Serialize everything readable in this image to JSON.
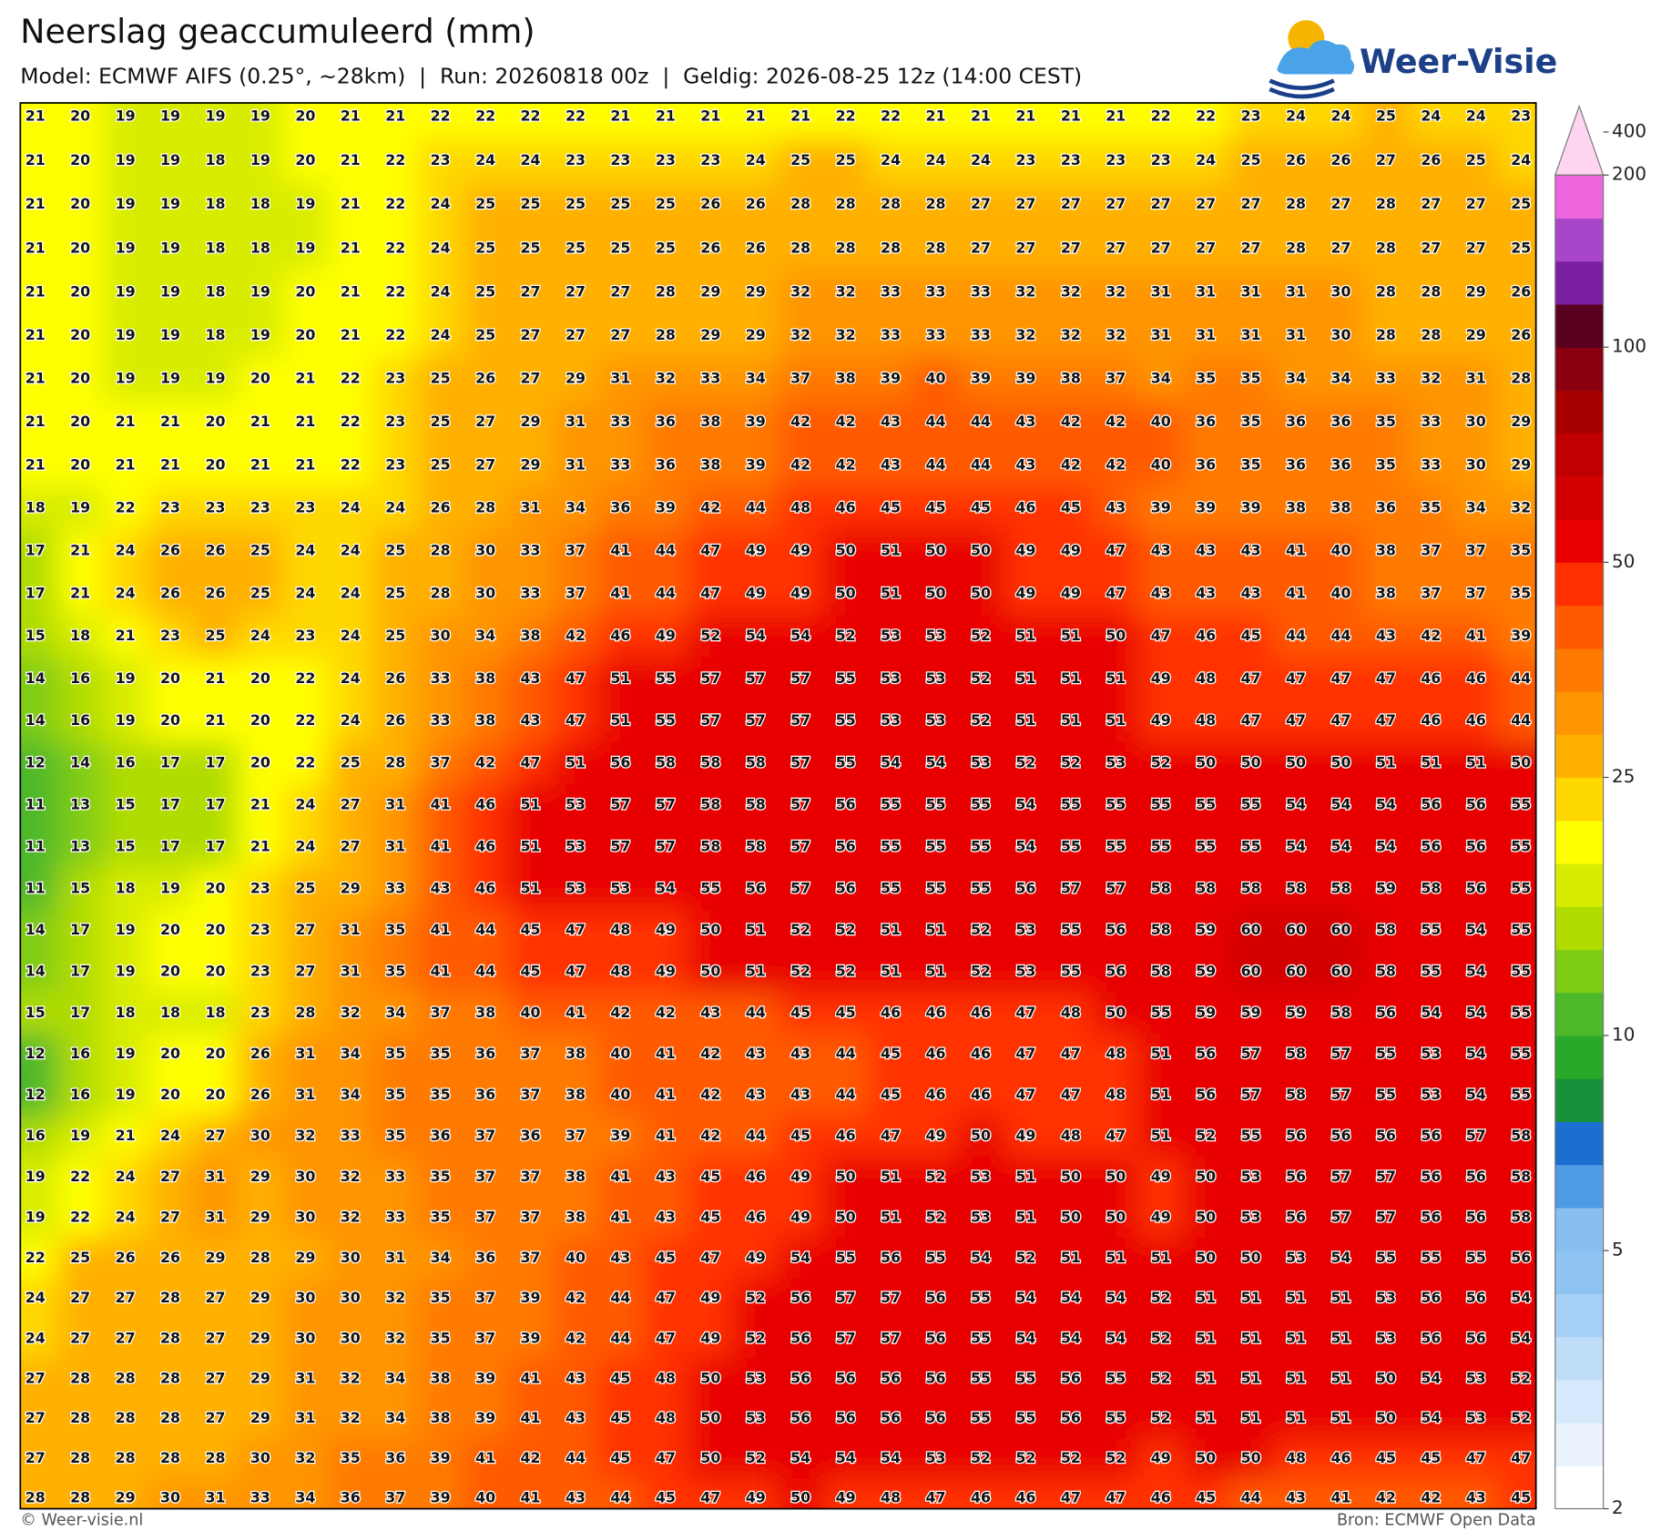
{
  "header": {
    "title": "Neerslag geaccumuleerd (mm)",
    "subtitle": "Model: ECMWF AIFS (0.25°, ~28km)  |  Run: 20260818 00z  |  Geldig: 2026-08-25 12z (14:00 CEST)"
  },
  "logo": {
    "text": "Weer-Visie"
  },
  "map": {
    "grid": [
      [
        21,
        20,
        19,
        19,
        19,
        19,
        20,
        21,
        21,
        22,
        22,
        22,
        22,
        21,
        21,
        21,
        21,
        21,
        22,
        22,
        21,
        21,
        21,
        21,
        21,
        22,
        22,
        23,
        24,
        24,
        25,
        24,
        24,
        23
      ],
      [
        21,
        20,
        19,
        19,
        18,
        19,
        20,
        21,
        22,
        23,
        24,
        24,
        23,
        23,
        23,
        23,
        24,
        25,
        25,
        24,
        24,
        24,
        23,
        23,
        23,
        23,
        24,
        25,
        26,
        26,
        27,
        26,
        25,
        24
      ],
      [
        21,
        20,
        19,
        19,
        18,
        18,
        19,
        21,
        22,
        24,
        25,
        25,
        25,
        25,
        25,
        26,
        26,
        28,
        28,
        28,
        28,
        27,
        27,
        27,
        27,
        27,
        27,
        27,
        28,
        27,
        28,
        27,
        27,
        25
      ],
      [
        21,
        20,
        19,
        19,
        18,
        18,
        19,
        21,
        22,
        24,
        25,
        25,
        25,
        25,
        25,
        26,
        26,
        28,
        28,
        28,
        28,
        27,
        27,
        27,
        27,
        27,
        27,
        27,
        28,
        27,
        28,
        27,
        27,
        25
      ],
      [
        21,
        20,
        19,
        19,
        18,
        19,
        20,
        21,
        22,
        24,
        25,
        27,
        27,
        27,
        28,
        29,
        29,
        32,
        32,
        33,
        33,
        33,
        32,
        32,
        32,
        31,
        31,
        31,
        31,
        30,
        28,
        28,
        29,
        26
      ],
      [
        21,
        20,
        19,
        19,
        18,
        19,
        20,
        21,
        22,
        24,
        25,
        27,
        27,
        27,
        28,
        29,
        29,
        32,
        32,
        33,
        33,
        33,
        32,
        32,
        32,
        31,
        31,
        31,
        31,
        30,
        28,
        28,
        29,
        26
      ],
      [
        21,
        20,
        19,
        19,
        19,
        20,
        21,
        22,
        23,
        25,
        26,
        27,
        29,
        31,
        32,
        33,
        34,
        37,
        38,
        39,
        40,
        39,
        39,
        38,
        37,
        34,
        35,
        35,
        34,
        34,
        33,
        32,
        31,
        28
      ],
      [
        21,
        20,
        21,
        21,
        20,
        21,
        21,
        22,
        23,
        25,
        27,
        29,
        31,
        33,
        36,
        38,
        39,
        42,
        42,
        43,
        44,
        44,
        43,
        42,
        42,
        40,
        36,
        35,
        36,
        36,
        35,
        33,
        30,
        29
      ],
      [
        21,
        20,
        21,
        21,
        20,
        21,
        21,
        22,
        23,
        25,
        27,
        29,
        31,
        33,
        36,
        38,
        39,
        42,
        42,
        43,
        44,
        44,
        43,
        42,
        42,
        40,
        36,
        35,
        36,
        36,
        35,
        33,
        30,
        29
      ],
      [
        18,
        19,
        22,
        23,
        23,
        23,
        23,
        24,
        24,
        26,
        28,
        31,
        34,
        36,
        39,
        42,
        44,
        48,
        46,
        45,
        45,
        45,
        46,
        45,
        43,
        39,
        39,
        39,
        38,
        38,
        36,
        35,
        34,
        32
      ],
      [
        17,
        21,
        24,
        26,
        26,
        25,
        24,
        24,
        25,
        28,
        30,
        33,
        37,
        41,
        44,
        47,
        49,
        49,
        50,
        51,
        50,
        50,
        49,
        49,
        47,
        43,
        43,
        43,
        41,
        40,
        38,
        37,
        37,
        35
      ],
      [
        17,
        21,
        24,
        26,
        26,
        25,
        24,
        24,
        25,
        28,
        30,
        33,
        37,
        41,
        44,
        47,
        49,
        49,
        50,
        51,
        50,
        50,
        49,
        49,
        47,
        43,
        43,
        43,
        41,
        40,
        38,
        37,
        37,
        35
      ],
      [
        15,
        18,
        21,
        23,
        25,
        24,
        23,
        24,
        25,
        30,
        34,
        38,
        42,
        46,
        49,
        52,
        54,
        54,
        52,
        53,
        53,
        52,
        51,
        51,
        50,
        47,
        46,
        45,
        44,
        44,
        43,
        42,
        41,
        39
      ],
      [
        14,
        16,
        19,
        20,
        21,
        20,
        22,
        24,
        26,
        33,
        38,
        43,
        47,
        51,
        55,
        57,
        57,
        57,
        55,
        53,
        53,
        52,
        51,
        51,
        51,
        49,
        48,
        47,
        47,
        47,
        47,
        46,
        46,
        44
      ],
      [
        14,
        16,
        19,
        20,
        21,
        20,
        22,
        24,
        26,
        33,
        38,
        43,
        47,
        51,
        55,
        57,
        57,
        57,
        55,
        53,
        53,
        52,
        51,
        51,
        51,
        49,
        48,
        47,
        47,
        47,
        47,
        46,
        46,
        44
      ],
      [
        12,
        14,
        16,
        17,
        17,
        20,
        22,
        25,
        28,
        37,
        42,
        47,
        51,
        56,
        58,
        58,
        58,
        57,
        55,
        54,
        54,
        53,
        52,
        52,
        53,
        52,
        50,
        50,
        50,
        50,
        51,
        51,
        51,
        50
      ],
      [
        11,
        13,
        15,
        17,
        17,
        21,
        24,
        27,
        31,
        41,
        46,
        51,
        53,
        57,
        57,
        58,
        58,
        57,
        56,
        55,
        55,
        55,
        54,
        55,
        55,
        55,
        55,
        55,
        54,
        54,
        54,
        56,
        56,
        55
      ],
      [
        11,
        13,
        15,
        17,
        17,
        21,
        24,
        27,
        31,
        41,
        46,
        51,
        53,
        57,
        57,
        58,
        58,
        57,
        56,
        55,
        55,
        55,
        54,
        55,
        55,
        55,
        55,
        55,
        54,
        54,
        54,
        56,
        56,
        55
      ],
      [
        11,
        15,
        18,
        19,
        20,
        23,
        25,
        29,
        33,
        43,
        46,
        51,
        53,
        53,
        54,
        55,
        56,
        57,
        56,
        55,
        55,
        55,
        56,
        57,
        57,
        58,
        58,
        58,
        58,
        58,
        59,
        58,
        56,
        55
      ],
      [
        14,
        17,
        19,
        20,
        20,
        23,
        27,
        31,
        35,
        41,
        44,
        45,
        47,
        48,
        49,
        50,
        51,
        52,
        52,
        51,
        51,
        52,
        53,
        55,
        56,
        58,
        59,
        60,
        60,
        60,
        58,
        55,
        54,
        55
      ],
      [
        14,
        17,
        19,
        20,
        20,
        23,
        27,
        31,
        35,
        41,
        44,
        45,
        47,
        48,
        49,
        50,
        51,
        52,
        52,
        51,
        51,
        52,
        53,
        55,
        56,
        58,
        59,
        60,
        60,
        60,
        58,
        55,
        54,
        55
      ],
      [
        15,
        17,
        18,
        18,
        18,
        23,
        28,
        32,
        34,
        37,
        38,
        40,
        41,
        42,
        42,
        43,
        44,
        45,
        45,
        46,
        46,
        46,
        47,
        48,
        50,
        55,
        59,
        59,
        59,
        58,
        56,
        54,
        54,
        55
      ],
      [
        12,
        16,
        19,
        20,
        20,
        26,
        31,
        34,
        35,
        35,
        36,
        37,
        38,
        40,
        41,
        42,
        43,
        43,
        44,
        45,
        46,
        46,
        47,
        47,
        48,
        51,
        56,
        57,
        58,
        57,
        55,
        53,
        54,
        55
      ],
      [
        12,
        16,
        19,
        20,
        20,
        26,
        31,
        34,
        35,
        35,
        36,
        37,
        38,
        40,
        41,
        42,
        43,
        43,
        44,
        45,
        46,
        46,
        47,
        47,
        48,
        51,
        56,
        57,
        58,
        57,
        55,
        53,
        54,
        55
      ],
      [
        16,
        19,
        21,
        24,
        27,
        30,
        32,
        33,
        35,
        36,
        37,
        36,
        37,
        39,
        41,
        42,
        44,
        45,
        46,
        47,
        49,
        50,
        49,
        48,
        47,
        51,
        52,
        55,
        56,
        56,
        56,
        56,
        57,
        58
      ],
      [
        19,
        22,
        24,
        27,
        31,
        29,
        30,
        32,
        33,
        35,
        37,
        37,
        38,
        41,
        43,
        45,
        46,
        49,
        50,
        51,
        52,
        53,
        51,
        50,
        50,
        49,
        50,
        53,
        56,
        57,
        57,
        56,
        56,
        58
      ],
      [
        19,
        22,
        24,
        27,
        31,
        29,
        30,
        32,
        33,
        35,
        37,
        37,
        38,
        41,
        43,
        45,
        46,
        49,
        50,
        51,
        52,
        53,
        51,
        50,
        50,
        49,
        50,
        53,
        56,
        57,
        57,
        56,
        56,
        58
      ],
      [
        22,
        25,
        26,
        26,
        29,
        28,
        29,
        30,
        31,
        34,
        36,
        37,
        40,
        43,
        45,
        47,
        49,
        54,
        55,
        56,
        55,
        54,
        52,
        51,
        51,
        51,
        50,
        50,
        53,
        54,
        55,
        55,
        55,
        56
      ],
      [
        24,
        27,
        27,
        28,
        27,
        29,
        30,
        30,
        32,
        35,
        37,
        39,
        42,
        44,
        47,
        49,
        52,
        56,
        57,
        57,
        56,
        55,
        54,
        54,
        54,
        52,
        51,
        51,
        51,
        51,
        53,
        56,
        56,
        54
      ],
      [
        24,
        27,
        27,
        28,
        27,
        29,
        30,
        30,
        32,
        35,
        37,
        39,
        42,
        44,
        47,
        49,
        52,
        56,
        57,
        57,
        56,
        55,
        54,
        54,
        54,
        52,
        51,
        51,
        51,
        51,
        53,
        56,
        56,
        54
      ],
      [
        27,
        28,
        28,
        28,
        27,
        29,
        31,
        32,
        34,
        38,
        39,
        41,
        43,
        45,
        48,
        50,
        53,
        56,
        56,
        56,
        56,
        55,
        55,
        56,
        55,
        52,
        51,
        51,
        51,
        51,
        50,
        54,
        53,
        52
      ],
      [
        27,
        28,
        28,
        28,
        27,
        29,
        31,
        32,
        34,
        38,
        39,
        41,
        43,
        45,
        48,
        50,
        53,
        56,
        56,
        56,
        56,
        55,
        55,
        56,
        55,
        52,
        51,
        51,
        51,
        51,
        50,
        54,
        53,
        52
      ],
      [
        27,
        28,
        28,
        28,
        28,
        30,
        32,
        35,
        36,
        39,
        41,
        42,
        44,
        45,
        47,
        50,
        52,
        54,
        54,
        54,
        53,
        52,
        52,
        52,
        52,
        49,
        50,
        50,
        48,
        46,
        45,
        45,
        47,
        47
      ],
      [
        28,
        28,
        29,
        30,
        31,
        33,
        34,
        36,
        37,
        39,
        40,
        41,
        43,
        44,
        45,
        47,
        49,
        50,
        49,
        48,
        47,
        46,
        46,
        47,
        47,
        46,
        45,
        44,
        43,
        41,
        42,
        42,
        43,
        45
      ]
    ]
  },
  "colorbar": {
    "ticks": [
      2,
      5,
      10,
      25,
      50,
      100,
      200,
      400
    ],
    "colors": [
      "#ffffff",
      "#eaf3fd",
      "#d6e8fb",
      "#c0ddf8",
      "#a6d0f5",
      "#8ec3f2",
      "#87bff0",
      "#4c9be3",
      "#1a6fd0",
      "#17913a",
      "#2aa82a",
      "#4db82a",
      "#7fcc16",
      "#b0dc00",
      "#d8ec00",
      "#ffff00",
      "#ffd800",
      "#ffb000",
      "#ff9500",
      "#ff7a00",
      "#ff5a00",
      "#ff3000",
      "#e80000",
      "#d20000",
      "#c00000",
      "#a80000",
      "#8b0010",
      "#5a0020",
      "#7b1fa2",
      "#a845c8",
      "#ee66dd"
    ],
    "extend_color": "#ffd4f0"
  },
  "footer": {
    "left": "© Weer-visie.nl",
    "right": "Bron: ECMWF Open Data"
  }
}
